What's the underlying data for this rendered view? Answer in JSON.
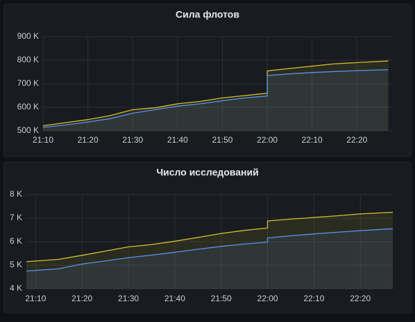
{
  "chart_data": [
    {
      "type": "line",
      "title": "Сила флотов",
      "x": [
        "21:10",
        "21:15",
        "21:20",
        "21:25",
        "21:30",
        "21:35",
        "21:40",
        "21:45",
        "21:50",
        "21:55",
        "22:00",
        "22:00",
        "22:05",
        "22:10",
        "22:15",
        "22:20",
        "22:27"
      ],
      "xlim": [
        "21:10",
        "22:28"
      ],
      "xticks": [
        "21:10",
        "21:20",
        "21:30",
        "21:40",
        "21:50",
        "22:00",
        "22:10",
        "22:20"
      ],
      "ylim": [
        500000,
        900000
      ],
      "yticks": [
        {
          "value": 500000,
          "label": "500 K"
        },
        {
          "value": 600000,
          "label": "600 K"
        },
        {
          "value": 700000,
          "label": "700 K"
        },
        {
          "value": 800000,
          "label": "800 K"
        },
        {
          "value": 900000,
          "label": "900 K"
        }
      ],
      "grid": true,
      "series": [
        {
          "color": "#d6c12e",
          "values": [
            522000,
            535000,
            548000,
            565000,
            590000,
            598000,
            615000,
            625000,
            640000,
            650000,
            660000,
            755000,
            765000,
            775000,
            785000,
            790000,
            797000
          ]
        },
        {
          "color": "#5794f2",
          "values": [
            515000,
            525000,
            538000,
            552000,
            575000,
            590000,
            605000,
            615000,
            628000,
            640000,
            648000,
            735000,
            742000,
            748000,
            752000,
            756000,
            760000
          ]
        }
      ]
    },
    {
      "type": "line",
      "title": "Число исследований",
      "x": [
        "21:08",
        "21:15",
        "21:20",
        "21:25",
        "21:30",
        "21:35",
        "21:40",
        "21:45",
        "21:50",
        "21:55",
        "22:00",
        "22:00",
        "22:05",
        "22:10",
        "22:15",
        "22:20",
        "22:27"
      ],
      "xlim": [
        "21:08",
        "22:27"
      ],
      "xticks": [
        "21:10",
        "21:20",
        "21:30",
        "21:40",
        "21:50",
        "22:00",
        "22:10",
        "22:20"
      ],
      "ylim": [
        4000,
        8000
      ],
      "yticks": [
        {
          "value": 4000,
          "label": "4 K"
        },
        {
          "value": 5000,
          "label": "5 K"
        },
        {
          "value": 6000,
          "label": "6 K"
        },
        {
          "value": 7000,
          "label": "7 K"
        },
        {
          "value": 8000,
          "label": "8 K"
        }
      ],
      "grid": true,
      "series": [
        {
          "color": "#d6c12e",
          "values": [
            5150,
            5250,
            5420,
            5600,
            5780,
            5880,
            6020,
            6180,
            6350,
            6480,
            6580,
            6880,
            6960,
            7030,
            7100,
            7180,
            7250
          ]
        },
        {
          "color": "#5794f2",
          "values": [
            4750,
            4850,
            5050,
            5180,
            5320,
            5430,
            5550,
            5680,
            5800,
            5900,
            5980,
            6160,
            6250,
            6330,
            6400,
            6470,
            6550
          ]
        }
      ]
    }
  ]
}
